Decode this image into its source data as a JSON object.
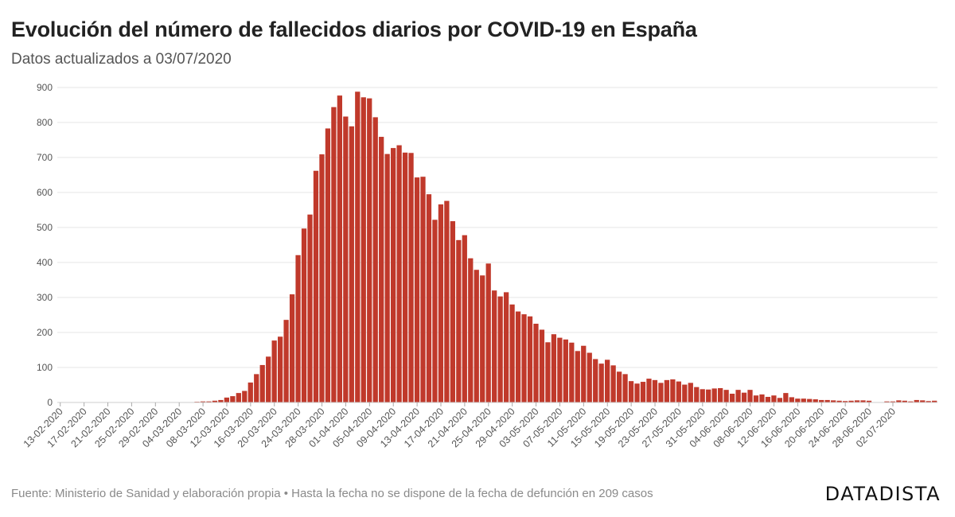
{
  "header": {
    "title": "Evolución del número de fallecidos diarios por COVID-19 en España",
    "subtitle": "Datos actualizados a 03/07/2020"
  },
  "footer": {
    "source": "Fuente: Ministerio de Sanidad y elaboración propia • Hasta la fecha no se dispone de la fecha de defunción en 209 casos",
    "brand": "DATADISTA"
  },
  "colors": {
    "bar": "#c0392b",
    "grid": "#e6e6e6",
    "tick_text": "#555555"
  },
  "chart_data": {
    "type": "bar",
    "xlabel": "",
    "ylabel": "",
    "ylim": [
      0,
      900
    ],
    "yticks": [
      0,
      100,
      200,
      300,
      400,
      500,
      600,
      700,
      800,
      900
    ],
    "grid": true,
    "x_tick_labels": [
      "13-02-2020",
      "17-02-2020",
      "21-02-2020",
      "25-02-2020",
      "29-02-2020",
      "04-03-2020",
      "08-03-2020",
      "12-03-2020",
      "16-03-2020",
      "20-03-2020",
      "24-03-2020",
      "28-03-2020",
      "01-04-2020",
      "05-04-2020",
      "09-04-2020",
      "13-04-2020",
      "17-04-2020",
      "21-04-2020",
      "25-04-2020",
      "29-04-2020",
      "03-05-2020",
      "07-05-2020",
      "11-05-2020",
      "15-05-2020",
      "19-05-2020",
      "23-05-2020",
      "27-05-2020",
      "31-05-2020",
      "04-06-2020",
      "08-06-2020",
      "12-06-2020",
      "16-06-2020",
      "20-06-2020",
      "24-06-2020",
      "28-06-2020",
      "02-07-2020"
    ],
    "x_start": "13-02-2020",
    "x_end": "02-07-2020",
    "series": [
      {
        "values": [
          1,
          0,
          0,
          0,
          0,
          0,
          0,
          0,
          0,
          0,
          0,
          0,
          0,
          0,
          0,
          0,
          0,
          0,
          0,
          0,
          0,
          0,
          1,
          2,
          3,
          3,
          5,
          7,
          14,
          18,
          27,
          33,
          57,
          81,
          107,
          131,
          177,
          188,
          236,
          309,
          421,
          497,
          537,
          662,
          709,
          783,
          844,
          877,
          817,
          789,
          888,
          872,
          869,
          815,
          759,
          710,
          727,
          735,
          714,
          713,
          643,
          645,
          595,
          522,
          566,
          576,
          518,
          464,
          478,
          412,
          379,
          363,
          397,
          320,
          303,
          315,
          280,
          260,
          252,
          246,
          225,
          208,
          172,
          195,
          185,
          180,
          171,
          147,
          162,
          142,
          124,
          111,
          122,
          106,
          88,
          81,
          61,
          54,
          59,
          68,
          64,
          56,
          64,
          66,
          60,
          51,
          56,
          44,
          38,
          37,
          40,
          41,
          36,
          25,
          36,
          28,
          36,
          20,
          23,
          16,
          20,
          13,
          27,
          15,
          11,
          11,
          10,
          9,
          7,
          7,
          6,
          5,
          4,
          5,
          6,
          6,
          5,
          1,
          0,
          3,
          3,
          6,
          5,
          3,
          7,
          6,
          4,
          5
        ]
      }
    ]
  }
}
